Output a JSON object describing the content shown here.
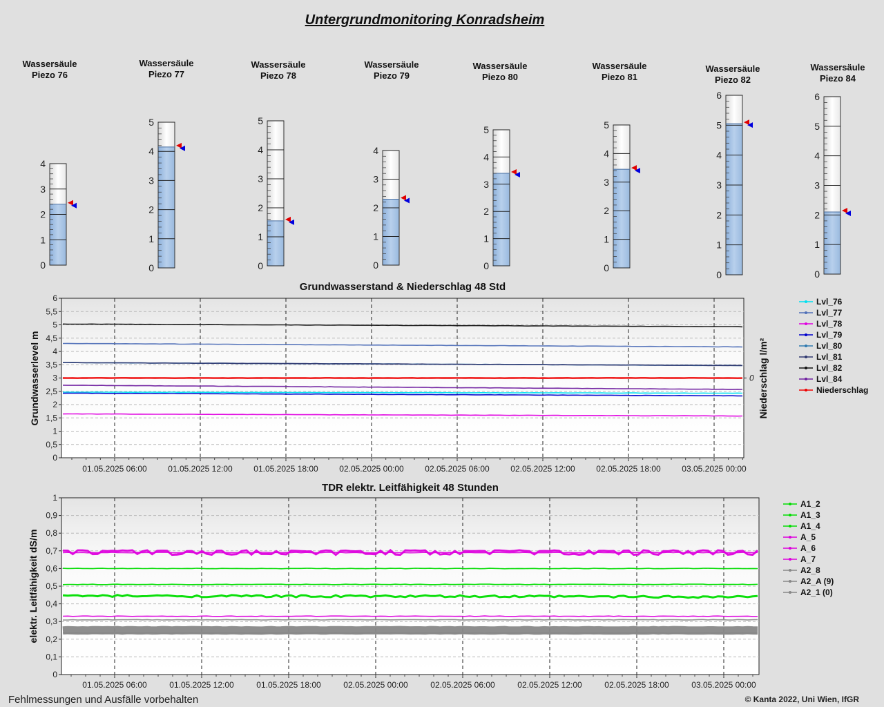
{
  "page": {
    "title": "Untergrundmonitoring Konradsheim",
    "footer_left": "Fehlmessungen und Ausfälle vorbehalten",
    "footer_right": "© Kanta 2022, Uni Wien, IfGR"
  },
  "gauges": [
    {
      "label1": "Wassersäule",
      "label2": "Piezo 76",
      "max": 4,
      "ticks": [
        "0",
        "1",
        "2",
        "3",
        "4"
      ],
      "level": 2.4
    },
    {
      "label1": "Wassersäule",
      "label2": "Piezo 77",
      "max": 5,
      "ticks": [
        "0",
        "1",
        "2",
        "3",
        "4",
        "5"
      ],
      "level": 4.15
    },
    {
      "label1": "Wassersäule",
      "label2": "Piezo 78",
      "max": 5,
      "ticks": [
        "0",
        "1",
        "2",
        "3",
        "4",
        "5"
      ],
      "level": 1.55
    },
    {
      "label1": "Wassersäule",
      "label2": "Piezo 79",
      "max": 4,
      "ticks": [
        "0",
        "1",
        "2",
        "3",
        "4"
      ],
      "level": 2.3
    },
    {
      "label1": "Wassersäule",
      "label2": "Piezo 80",
      "max": 5,
      "ticks": [
        "0",
        "1",
        "2",
        "3",
        "4",
        "5"
      ],
      "level": 3.4
    },
    {
      "label1": "Wassersäule",
      "label2": "Piezo 81",
      "max": 5,
      "ticks": [
        "0",
        "1",
        "2",
        "3",
        "4",
        "5"
      ],
      "level": 3.45
    },
    {
      "label1": "Wassersäule",
      "label2": "Piezo 82",
      "max": 6,
      "ticks": [
        "0",
        "1",
        "2",
        "3",
        "4",
        "5",
        "6"
      ],
      "level": 5.05
    },
    {
      "label1": "Wassersäule",
      "label2": "Piezo 84",
      "max": 6,
      "ticks": [
        "0",
        "1",
        "2",
        "3",
        "4",
        "5",
        "6"
      ],
      "level": 2.1
    }
  ],
  "chart_data": [
    {
      "type": "line",
      "title": "Grundwasserstand & Niederschlag 48 Std",
      "ylabel": "Grundwasserlevel m",
      "y2label": "Niederschlag l/m²",
      "y2_ticks": [
        "0"
      ],
      "ylim": [
        0,
        6
      ],
      "yticks": [
        "0",
        "0,5",
        "1",
        "1,5",
        "2",
        "2,5",
        "3",
        "3,5",
        "4",
        "4,5",
        "5",
        "5,5",
        "6"
      ],
      "xticks": [
        "01.05.2025 06:00",
        "01.05.2025 12:00",
        "01.05.2025 18:00",
        "02.05.2025 00:00",
        "02.05.2025 06:00",
        "02.05.2025 12:00",
        "02.05.2025 18:00",
        "03.05.2025 00:00"
      ],
      "grid": true,
      "legend_position": "right",
      "series": [
        {
          "name": "Lvl_76",
          "color": "#00e0f0",
          "start": 2.47,
          "end": 2.43
        },
        {
          "name": "Lvl_77",
          "color": "#5070b8",
          "start": 4.3,
          "end": 4.17
        },
        {
          "name": "Lvl_78",
          "color": "#e000e0",
          "start": 1.65,
          "end": 1.57
        },
        {
          "name": "Lvl_79",
          "color": "#0000cc",
          "start": 2.43,
          "end": 2.33
        },
        {
          "name": "Lvl_80",
          "color": "#307ab0",
          "start": 3.58,
          "end": 3.47
        },
        {
          "name": "Lvl_81",
          "color": "#303870",
          "start": 3.58,
          "end": 3.47
        },
        {
          "name": "Lvl_82",
          "color": "#111111",
          "start": 5.03,
          "end": 4.93
        },
        {
          "name": "Lvl_84",
          "color": "#7020a0",
          "start": 2.73,
          "end": 2.57
        },
        {
          "name": "Niederschlag",
          "color": "#ee0000",
          "start": 3.0,
          "end": 3.0
        }
      ]
    },
    {
      "type": "line",
      "title": "TDR elektr. Leitfähigkeit 48 Stunden",
      "ylabel": "elektr. Leitfähigkeit dS/m",
      "ylim": [
        0,
        1
      ],
      "yticks": [
        "0",
        "0,1",
        "0,2",
        "0,3",
        "0,4",
        "0,5",
        "0,6",
        "0,7",
        "0,8",
        "0,9",
        "1"
      ],
      "xticks": [
        "01.05.2025 06:00",
        "01.05.2025 12:00",
        "01.05.2025 18:00",
        "02.05.2025 00:00",
        "02.05.2025 06:00",
        "02.05.2025 12:00",
        "02.05.2025 18:00",
        "03.05.2025 00:00"
      ],
      "grid": true,
      "legend_position": "right",
      "series": [
        {
          "name": "A1_2",
          "color": "#00dd00",
          "start": 0.51,
          "end": 0.51
        },
        {
          "name": "A1_3",
          "color": "#00dd00",
          "start": 0.6,
          "end": 0.6
        },
        {
          "name": "A1_4",
          "color": "#00dd00",
          "start": 0.445,
          "end": 0.44
        },
        {
          "name": "A_5",
          "color": "#dd00dd",
          "start": 0.7,
          "end": 0.7
        },
        {
          "name": "A_6",
          "color": "#dd00dd",
          "start": 0.33,
          "end": 0.33
        },
        {
          "name": "A_7",
          "color": "#dd00dd",
          "start": 0.69,
          "end": 0.69
        },
        {
          "name": "A2_8",
          "color": "#888888",
          "start": 0.25,
          "end": 0.25
        },
        {
          "name": "A2_A (9)",
          "color": "#888888",
          "start": 0.31,
          "end": 0.31
        },
        {
          "name": "A2_1 (0)",
          "color": "#888888",
          "start": 0.235,
          "end": 0.235
        }
      ]
    }
  ]
}
